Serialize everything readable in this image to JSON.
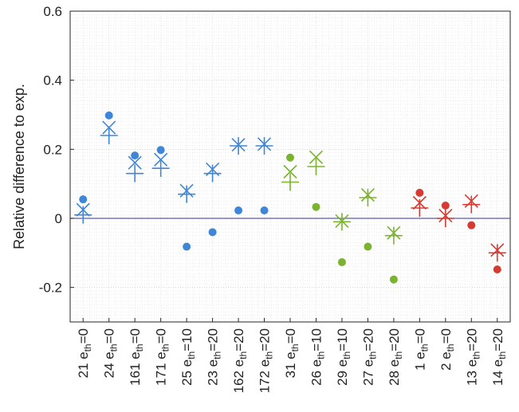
{
  "chart_data": {
    "type": "scatter",
    "title": "",
    "xlabel": "",
    "ylabel": "Relative difference to exp.",
    "ylim": [
      -0.3,
      0.6
    ],
    "yticks": [
      0.6,
      0.4,
      0.2,
      0,
      -0.2
    ],
    "ytick_labels": [
      "0.6",
      "0.4",
      "0.2",
      "0",
      "-0.2"
    ],
    "grid": true,
    "legend": "none",
    "reference_line": {
      "y": 0,
      "color": "#5a5ab4"
    },
    "categories": [
      {
        "num": "21",
        "sub": "th",
        "cond": "=0"
      },
      {
        "num": "24",
        "sub": "th",
        "cond": "=0"
      },
      {
        "num": "161",
        "sub": "th",
        "cond": "=0"
      },
      {
        "num": "171",
        "sub": "th",
        "cond": "=0"
      },
      {
        "num": "25",
        "sub": "th",
        "cond": "=10"
      },
      {
        "num": "23",
        "sub": "th",
        "cond": "=20"
      },
      {
        "num": "162",
        "sub": "th",
        "cond": "=20"
      },
      {
        "num": "172",
        "sub": "th",
        "cond": "=20"
      },
      {
        "num": "31",
        "sub": "th",
        "cond": "=0"
      },
      {
        "num": "26",
        "sub": "th",
        "cond": "=10"
      },
      {
        "num": "29",
        "sub": "th",
        "cond": "=10"
      },
      {
        "num": "27",
        "sub": "th",
        "cond": "=20"
      },
      {
        "num": "28",
        "sub": "th",
        "cond": "=20"
      },
      {
        "num": "1",
        "sub": "th",
        "cond": "=0"
      },
      {
        "num": "2",
        "sub": "th",
        "cond": "=0"
      },
      {
        "num": "13",
        "sub": "th",
        "cond": "=20"
      },
      {
        "num": "14",
        "sub": "th",
        "cond": "=20"
      }
    ],
    "category_letter": "e",
    "colors": [
      "#3f86d9",
      "#3f86d9",
      "#3f86d9",
      "#3f86d9",
      "#3f86d9",
      "#3f86d9",
      "#3f86d9",
      "#3f86d9",
      "#7ab32e",
      "#7ab32e",
      "#7ab32e",
      "#7ab32e",
      "#7ab32e",
      "#d63b32",
      "#d63b32",
      "#d63b32",
      "#d63b32"
    ],
    "series": [
      {
        "marker": "dot",
        "values": [
          0.055,
          0.298,
          0.182,
          0.198,
          -0.082,
          -0.04,
          0.023,
          0.023,
          0.176,
          0.033,
          -0.127,
          -0.082,
          -0.177,
          0.074,
          0.037,
          -0.02,
          -0.148
        ]
      },
      {
        "marker": "x",
        "values": [
          0.025,
          0.263,
          0.161,
          0.17,
          0.08,
          0.142,
          0.213,
          0.215,
          0.135,
          0.177,
          -0.008,
          0.068,
          -0.042,
          0.045,
          0.008,
          0.05,
          -0.092
        ]
      },
      {
        "marker": "plus",
        "values": [
          0.01,
          0.24,
          0.13,
          0.145,
          0.07,
          0.13,
          0.21,
          0.21,
          0.105,
          0.15,
          -0.01,
          0.06,
          -0.05,
          0.03,
          0.0,
          0.04,
          -0.1
        ]
      }
    ]
  }
}
